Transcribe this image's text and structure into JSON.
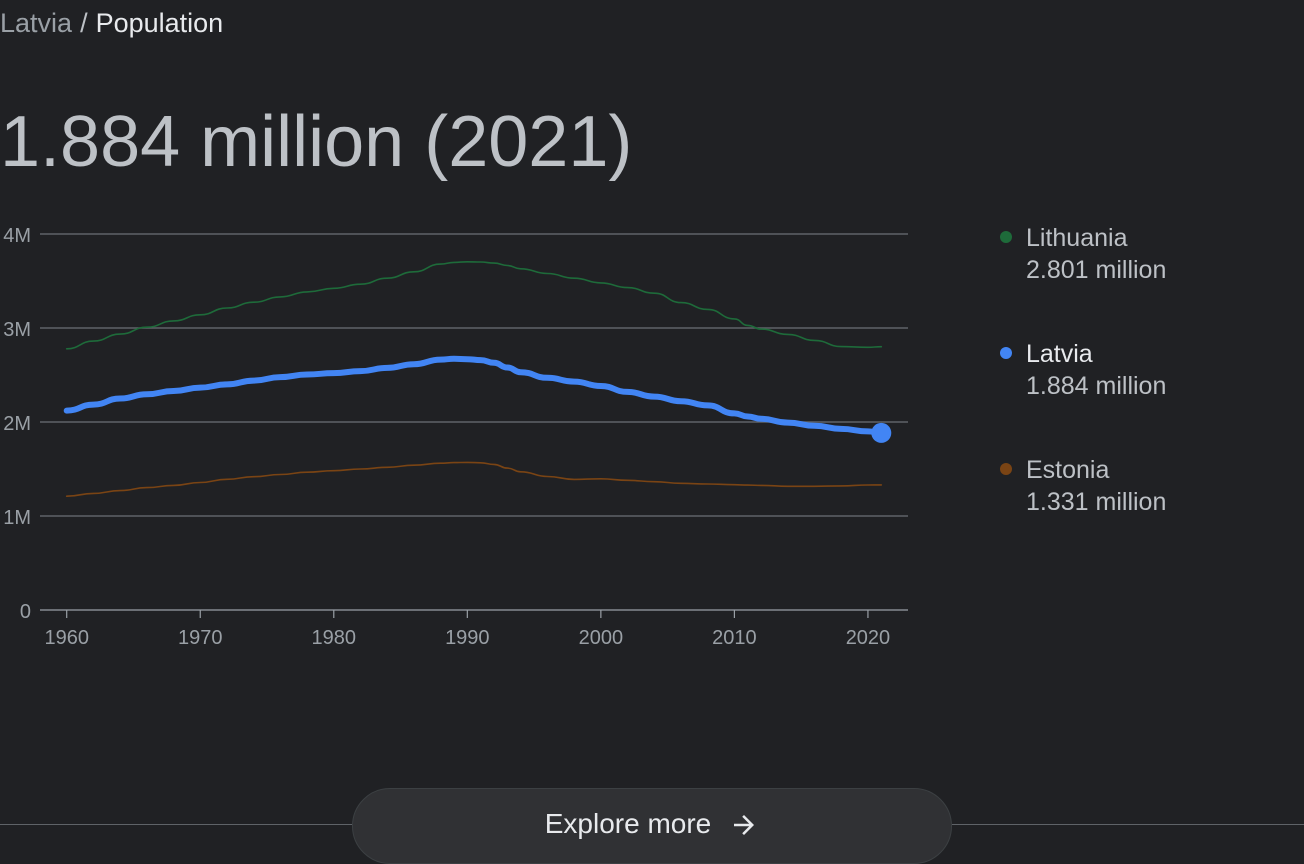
{
  "breadcrumb": {
    "parent": "Latvia",
    "separator": "/",
    "current": "Population"
  },
  "headline": "1.884 million (2021)",
  "legend": [
    {
      "name": "Lithuania",
      "value": "2.801 million",
      "color": "#1e6b3a",
      "name_color": "#bdc1c6",
      "selected": false
    },
    {
      "name": "Latvia",
      "value": "1.884 million",
      "color": "#4285f4",
      "name_color": "#e8eaed",
      "selected": true
    },
    {
      "name": "Estonia",
      "value": "1.331 million",
      "color": "#7a4414",
      "name_color": "#bdc1c6",
      "selected": false
    }
  ],
  "explore": {
    "label": "Explore more",
    "icon": "arrow-right-icon"
  },
  "chart_data": {
    "type": "line",
    "xlabel": "",
    "ylabel": "",
    "xlim": [
      1958,
      2023
    ],
    "ylim": [
      0,
      4000000
    ],
    "x_ticks": [
      1960,
      1970,
      1980,
      1990,
      2000,
      2010,
      2020
    ],
    "y_ticks": [
      0,
      1000000,
      2000000,
      3000000,
      4000000
    ],
    "y_tick_labels": [
      "0",
      "1M",
      "2M",
      "3M",
      "4M"
    ],
    "grid": true,
    "legend_position": "right",
    "x": [
      1960,
      1962,
      1964,
      1966,
      1968,
      1970,
      1972,
      1974,
      1976,
      1978,
      1980,
      1982,
      1984,
      1986,
      1988,
      1989,
      1990,
      1991,
      1992,
      1993,
      1994,
      1996,
      1998,
      2000,
      2002,
      2004,
      2006,
      2008,
      2010,
      2011,
      2012,
      2014,
      2016,
      2018,
      2020,
      2021
    ],
    "series": [
      {
        "name": "Lithuania",
        "color": "#1e6b3a",
        "width": 1.6,
        "values": [
          2779000,
          2861000,
          2935000,
          3008000,
          3076000,
          3140000,
          3213000,
          3274000,
          3331000,
          3384000,
          3422000,
          3466000,
          3530000,
          3598000,
          3680000,
          3698000,
          3704000,
          3702000,
          3690000,
          3665000,
          3630000,
          3580000,
          3530000,
          3480000,
          3430000,
          3370000,
          3270000,
          3198000,
          3097000,
          3028000,
          2988000,
          2932000,
          2868000,
          2802000,
          2795000,
          2801000
        ]
      },
      {
        "name": "Latvia",
        "color": "#4285f4",
        "width": 6,
        "values": [
          2121000,
          2185000,
          2250000,
          2295000,
          2330000,
          2366000,
          2400000,
          2440000,
          2478000,
          2505000,
          2520000,
          2542000,
          2575000,
          2615000,
          2664000,
          2672000,
          2668000,
          2658000,
          2630000,
          2580000,
          2530000,
          2470000,
          2430000,
          2383000,
          2320000,
          2270000,
          2221000,
          2177000,
          2092000,
          2058000,
          2034000,
          1994000,
          1960000,
          1927000,
          1900000,
          1884000
        ]
      },
      {
        "name": "Estonia",
        "color": "#7a4414",
        "width": 1.6,
        "values": [
          1211000,
          1240000,
          1270000,
          1302000,
          1326000,
          1356000,
          1390000,
          1418000,
          1442000,
          1466000,
          1482000,
          1500000,
          1518000,
          1540000,
          1562000,
          1568000,
          1570000,
          1566000,
          1549000,
          1510000,
          1470000,
          1420000,
          1389000,
          1396000,
          1380000,
          1365000,
          1348000,
          1340000,
          1333000,
          1329000,
          1325000,
          1316000,
          1316000,
          1320000,
          1330000,
          1331000
        ]
      }
    ],
    "highlight": {
      "series": "Latvia",
      "x": 2021,
      "y": 1884000
    }
  }
}
